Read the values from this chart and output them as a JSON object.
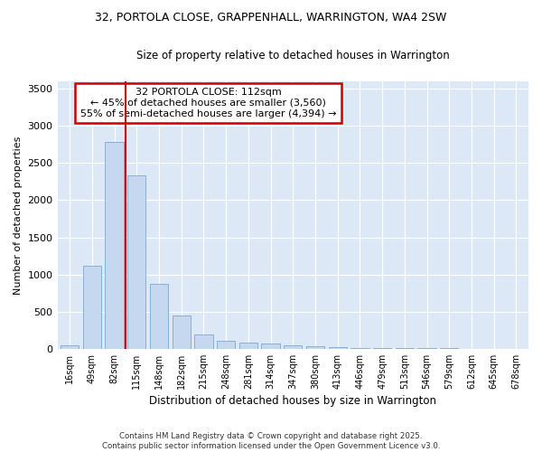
{
  "title1": "32, PORTOLA CLOSE, GRAPPENHALL, WARRINGTON, WA4 2SW",
  "title2": "Size of property relative to detached houses in Warrington",
  "xlabel": "Distribution of detached houses by size in Warrington",
  "ylabel": "Number of detached properties",
  "categories": [
    "16sqm",
    "49sqm",
    "82sqm",
    "115sqm",
    "148sqm",
    "182sqm",
    "215sqm",
    "248sqm",
    "281sqm",
    "314sqm",
    "347sqm",
    "380sqm",
    "413sqm",
    "446sqm",
    "479sqm",
    "513sqm",
    "546sqm",
    "579sqm",
    "612sqm",
    "645sqm",
    "678sqm"
  ],
  "values": [
    45,
    1120,
    2780,
    2340,
    880,
    445,
    195,
    105,
    85,
    70,
    45,
    35,
    25,
    15,
    10,
    7,
    5,
    4,
    3,
    2,
    2
  ],
  "bar_color": "#c5d8f0",
  "bar_edge_color": "#7aaad0",
  "vline_color": "#cc0000",
  "annotation_title": "32 PORTOLA CLOSE: 112sqm",
  "annotation_line2": "← 45% of detached houses are smaller (3,560)",
  "annotation_line3": "55% of semi-detached houses are larger (4,394) →",
  "annotation_box_color": "#cc0000",
  "ylim": [
    0,
    3600
  ],
  "yticks": [
    0,
    500,
    1000,
    1500,
    2000,
    2500,
    3000,
    3500
  ],
  "fig_bg_color": "#ffffff",
  "plot_bg_color": "#dce8f5",
  "grid_color": "#ffffff",
  "footer1": "Contains HM Land Registry data © Crown copyright and database right 2025.",
  "footer2": "Contains public sector information licensed under the Open Government Licence v3.0."
}
